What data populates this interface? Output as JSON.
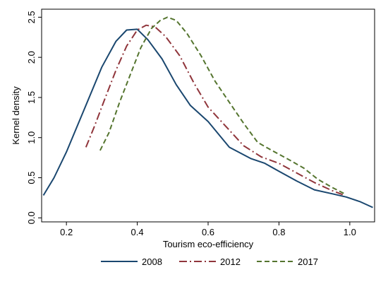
{
  "chart_data": {
    "type": "line",
    "title": "",
    "xlabel": "Tourism eco-efficiency",
    "ylabel": "Kernel density",
    "xlim": [
      0.13,
      1.07
    ],
    "ylim": [
      -0.05,
      2.6
    ],
    "xticks": [
      {
        "value": 0.2,
        "label": "0.2"
      },
      {
        "value": 0.4,
        "label": "0.4"
      },
      {
        "value": 0.6,
        "label": "0.6"
      },
      {
        "value": 0.8,
        "label": "0.8"
      },
      {
        "value": 1.0,
        "label": "1.0"
      }
    ],
    "yticks": [
      {
        "value": 0.0,
        "label": "0.0"
      },
      {
        "value": 0.5,
        "label": "0.5"
      },
      {
        "value": 1.0,
        "label": "1.0"
      },
      {
        "value": 1.5,
        "label": "1.5"
      },
      {
        "value": 2.0,
        "label": "2.0"
      },
      {
        "value": 2.5,
        "label": "2.5"
      }
    ],
    "grid": false,
    "legend_position": "bottom",
    "series": [
      {
        "name": "2008",
        "color": "#1a476f",
        "style": "solid",
        "points": [
          [
            0.135,
            0.28
          ],
          [
            0.165,
            0.5
          ],
          [
            0.2,
            0.82
          ],
          [
            0.25,
            1.35
          ],
          [
            0.3,
            1.88
          ],
          [
            0.34,
            2.2
          ],
          [
            0.37,
            2.34
          ],
          [
            0.4,
            2.35
          ],
          [
            0.43,
            2.22
          ],
          [
            0.47,
            1.98
          ],
          [
            0.51,
            1.66
          ],
          [
            0.55,
            1.4
          ],
          [
            0.6,
            1.2
          ],
          [
            0.66,
            0.88
          ],
          [
            0.72,
            0.74
          ],
          [
            0.76,
            0.68
          ],
          [
            0.8,
            0.58
          ],
          [
            0.85,
            0.46
          ],
          [
            0.9,
            0.35
          ],
          [
            0.95,
            0.3
          ],
          [
            0.99,
            0.26
          ],
          [
            1.03,
            0.2
          ],
          [
            1.065,
            0.13
          ]
        ]
      },
      {
        "name": "2012",
        "color": "#90353b",
        "style": "dash-dot",
        "points": [
          [
            0.255,
            0.88
          ],
          [
            0.28,
            1.15
          ],
          [
            0.31,
            1.5
          ],
          [
            0.34,
            1.84
          ],
          [
            0.37,
            2.14
          ],
          [
            0.4,
            2.34
          ],
          [
            0.425,
            2.4
          ],
          [
            0.45,
            2.38
          ],
          [
            0.48,
            2.26
          ],
          [
            0.52,
            2.02
          ],
          [
            0.56,
            1.68
          ],
          [
            0.6,
            1.38
          ],
          [
            0.65,
            1.14
          ],
          [
            0.7,
            0.9
          ],
          [
            0.75,
            0.76
          ],
          [
            0.8,
            0.68
          ],
          [
            0.85,
            0.56
          ],
          [
            0.9,
            0.44
          ],
          [
            0.95,
            0.34
          ],
          [
            0.98,
            0.29
          ]
        ]
      },
      {
        "name": "2017",
        "color": "#55752f",
        "style": "dash",
        "points": [
          [
            0.295,
            0.84
          ],
          [
            0.32,
            1.06
          ],
          [
            0.35,
            1.44
          ],
          [
            0.38,
            1.78
          ],
          [
            0.41,
            2.12
          ],
          [
            0.44,
            2.36
          ],
          [
            0.465,
            2.46
          ],
          [
            0.485,
            2.5
          ],
          [
            0.51,
            2.46
          ],
          [
            0.54,
            2.3
          ],
          [
            0.58,
            2.02
          ],
          [
            0.62,
            1.7
          ],
          [
            0.66,
            1.44
          ],
          [
            0.7,
            1.18
          ],
          [
            0.74,
            0.94
          ],
          [
            0.78,
            0.84
          ],
          [
            0.83,
            0.72
          ],
          [
            0.87,
            0.62
          ],
          [
            0.91,
            0.48
          ],
          [
            0.95,
            0.38
          ],
          [
            0.985,
            0.3
          ]
        ]
      }
    ]
  }
}
